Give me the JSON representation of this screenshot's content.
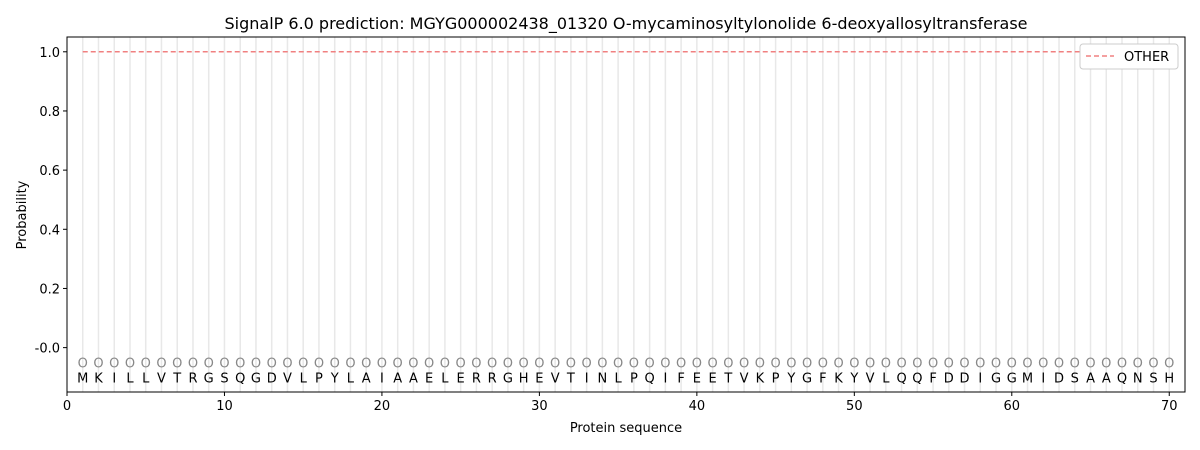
{
  "chart_data": {
    "type": "line",
    "title": "SignalP 6.0 prediction: MGYG000002438_01320 O-mycaminosyltylonolide 6-deoxyallosyltransferase",
    "xlabel": "Protein sequence",
    "ylabel": "Probability",
    "xlim": [
      0,
      71
    ],
    "ylim": [
      -0.15,
      1.05
    ],
    "xticks": [
      0,
      10,
      20,
      30,
      40,
      50,
      60,
      70
    ],
    "yticks": [
      "-0.0",
      "0.2",
      "0.4",
      "0.6",
      "0.8",
      "1.0"
    ],
    "ytick_values": [
      0,
      0.2,
      0.4,
      0.6,
      0.8,
      1.0
    ],
    "legend": {
      "placement": "top-right",
      "entries": [
        "OTHER"
      ]
    },
    "sequence": [
      "M",
      "K",
      "I",
      "L",
      "L",
      "V",
      "T",
      "R",
      "G",
      "S",
      "Q",
      "G",
      "D",
      "V",
      "L",
      "P",
      "Y",
      "L",
      "A",
      "I",
      "A",
      "A",
      "E",
      "L",
      "E",
      "R",
      "R",
      "G",
      "H",
      "E",
      "V",
      "T",
      "I",
      "N",
      "L",
      "P",
      "Q",
      "I",
      "F",
      "E",
      "E",
      "T",
      "V",
      "K",
      "P",
      "Y",
      "G",
      "F",
      "K",
      "Y",
      "V",
      "L",
      "Q",
      "Q",
      "F",
      "D",
      "D",
      "I",
      "G",
      "G",
      "M",
      "I",
      "D",
      "S",
      "A",
      "A",
      "Q",
      "N",
      "S",
      "H"
    ],
    "labels_marker": "O",
    "series": [
      {
        "name": "OTHER",
        "color": "#f08080",
        "style": "dashed",
        "x_range": [
          1,
          70
        ],
        "value": 1.0
      }
    ]
  }
}
